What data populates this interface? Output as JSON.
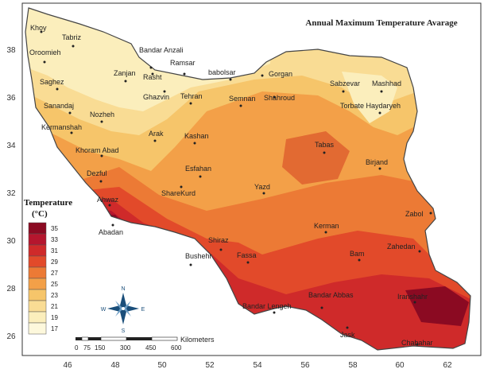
{
  "title": "Annual Maximum Temperature Avarage",
  "legend": {
    "title": "Temperature",
    "unit": "(°C)",
    "ticks": [
      "35",
      "33",
      "31",
      "29",
      "27",
      "25",
      "23",
      "21",
      "19",
      "17"
    ],
    "colors": [
      "#8b0a22",
      "#b5162e",
      "#cf2a2a",
      "#e24a2a",
      "#ec7a35",
      "#f3a048",
      "#f6c56a",
      "#f9dc94",
      "#fbeebc",
      "#fdf8dc"
    ]
  },
  "axes": {
    "x_ticks": [
      "46",
      "48",
      "50",
      "52",
      "54",
      "56",
      "58",
      "60",
      "62"
    ],
    "y_ticks": [
      "38",
      "36",
      "34",
      "32",
      "30",
      "28",
      "26"
    ]
  },
  "scalebar": {
    "ticks": [
      "0",
      "75",
      "150",
      "300",
      "450",
      "600"
    ],
    "unit": "Kilometers"
  },
  "compass": {
    "n": "N",
    "s": "S",
    "e": "E",
    "w": "W"
  },
  "cities": [
    {
      "name": "Khoy"
    },
    {
      "name": "Tabriz"
    },
    {
      "name": "Oroomieh"
    },
    {
      "name": "Bandar Anzali"
    },
    {
      "name": "Ramsar"
    },
    {
      "name": "babolsar"
    },
    {
      "name": "Gorgan"
    },
    {
      "name": "Sabzevar"
    },
    {
      "name": "Mashhad"
    },
    {
      "name": "Zanjan"
    },
    {
      "name": "Rasht"
    },
    {
      "name": "Saghez"
    },
    {
      "name": "Ghazvin"
    },
    {
      "name": "Tehran"
    },
    {
      "name": "Semnan"
    },
    {
      "name": "Shahroud"
    },
    {
      "name": "Torbate Haydaryeh"
    },
    {
      "name": "Sanandaj"
    },
    {
      "name": "Nozheh"
    },
    {
      "name": "Kermanshah"
    },
    {
      "name": "Arak"
    },
    {
      "name": "Kashan"
    },
    {
      "name": "Tabas"
    },
    {
      "name": "Khoram Abad"
    },
    {
      "name": "Birjand"
    },
    {
      "name": "Esfahan"
    },
    {
      "name": "Dezful"
    },
    {
      "name": "ShareKurd"
    },
    {
      "name": "Yazd"
    },
    {
      "name": "Ahwaz"
    },
    {
      "name": "Zabol"
    },
    {
      "name": "Abadan"
    },
    {
      "name": "Kerman"
    },
    {
      "name": "Shiraz"
    },
    {
      "name": "Zahedan"
    },
    {
      "name": "Bushehr"
    },
    {
      "name": "Fassa"
    },
    {
      "name": "Bam"
    },
    {
      "name": "Bandar Abbas"
    },
    {
      "name": "Iranshahr"
    },
    {
      "name": "Bandar Lengeh"
    },
    {
      "name": "Jask"
    },
    {
      "name": "Chabahar"
    }
  ]
}
